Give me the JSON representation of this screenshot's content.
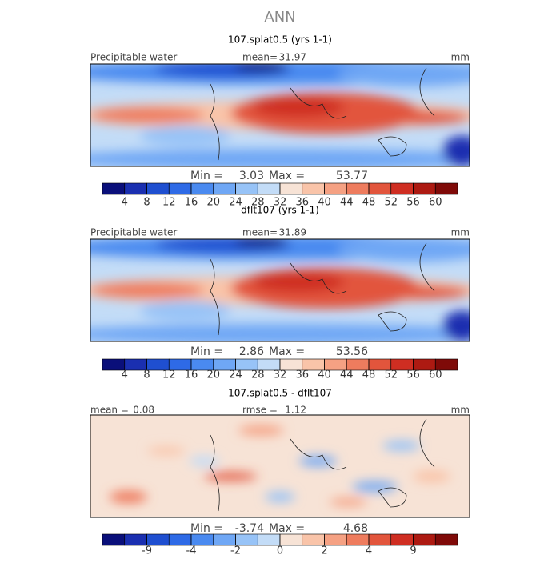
{
  "title": "ANN",
  "chart_data": [
    {
      "type": "contour-map",
      "title": "107.splat0.5 (yrs 1-1)",
      "field_label": "Precipitable water",
      "stats": [
        {
          "label": "mean=",
          "value": 31.97
        }
      ],
      "units": "mm",
      "min_label": "Min =",
      "min": 3.03,
      "max_label": "Max =",
      "max": 53.77,
      "colorbar": {
        "colors": [
          "#0a0f7a",
          "#1a2fb0",
          "#1f4fd0",
          "#2e6ae6",
          "#4a8af0",
          "#6fa7f5",
          "#97c3f7",
          "#c3dcf7",
          "#f7e3d6",
          "#f9c4a9",
          "#f5a183",
          "#ee7c5e",
          "#e2553c",
          "#cf2e22",
          "#ad1a12",
          "#7f0a08"
        ],
        "ticks": [
          4,
          8,
          12,
          16,
          20,
          24,
          28,
          32,
          36,
          40,
          44,
          48,
          52,
          56,
          60
        ]
      }
    },
    {
      "type": "contour-map",
      "title": "dflt107 (yrs 1-1)",
      "field_label": "Precipitable water",
      "stats": [
        {
          "label": "mean=",
          "value": 31.89
        }
      ],
      "units": "mm",
      "min_label": "Min =",
      "min": 2.86,
      "max_label": "Max =",
      "max": 53.56,
      "colorbar": {
        "colors": [
          "#0a0f7a",
          "#1a2fb0",
          "#1f4fd0",
          "#2e6ae6",
          "#4a8af0",
          "#6fa7f5",
          "#97c3f7",
          "#c3dcf7",
          "#f7e3d6",
          "#f9c4a9",
          "#f5a183",
          "#ee7c5e",
          "#e2553c",
          "#cf2e22",
          "#ad1a12",
          "#7f0a08"
        ],
        "ticks": [
          4,
          8,
          12,
          16,
          20,
          24,
          28,
          32,
          36,
          40,
          44,
          48,
          52,
          56,
          60
        ]
      }
    },
    {
      "type": "contour-map",
      "title": "107.splat0.5 - dflt107",
      "stats": [
        {
          "label": "mean =",
          "value": 0.08
        },
        {
          "label": "rmse =",
          "value": 1.12
        }
      ],
      "units": "mm",
      "min_label": "Min =",
      "min": -3.74,
      "max_label": "Max =",
      "max": 4.68,
      "colorbar": {
        "colors": [
          "#0a0f7a",
          "#1a2fb0",
          "#1f4fd0",
          "#2e6ae6",
          "#4a8af0",
          "#6fa7f5",
          "#97c3f7",
          "#c3dcf7",
          "#f7e3d6",
          "#f9c4a9",
          "#f5a183",
          "#ee7c5e",
          "#e2553c",
          "#cf2e22",
          "#ad1a12",
          "#7f0a08"
        ],
        "ticks": [
          -9,
          -4,
          -2,
          0,
          2,
          4,
          9
        ]
      }
    }
  ]
}
